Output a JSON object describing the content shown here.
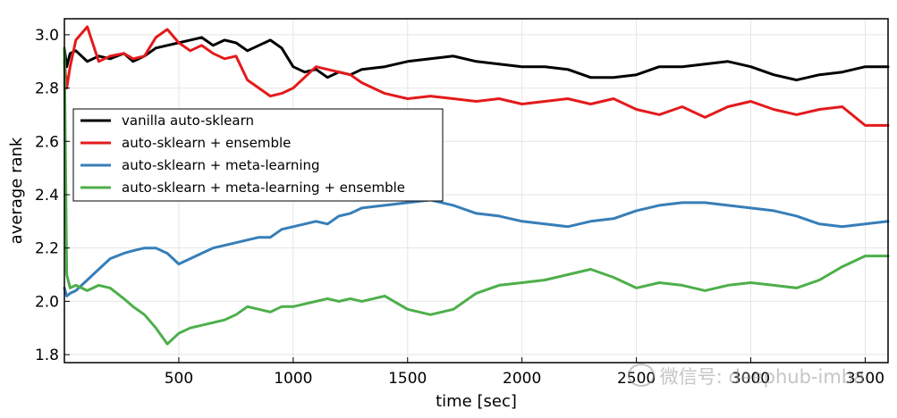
{
  "chart_data": {
    "type": "line",
    "title": "",
    "xlabel": "time [sec]",
    "ylabel": "average rank",
    "xlim": [
      0,
      3600
    ],
    "ylim": [
      1.77,
      3.06
    ],
    "xticks": [
      500,
      1000,
      1500,
      2000,
      2500,
      3000,
      3500
    ],
    "yticks": [
      1.8,
      2.0,
      2.2,
      2.4,
      2.6,
      2.8,
      3.0
    ],
    "xtick_labels": [
      "500",
      "1000",
      "1500",
      "2000",
      "2500",
      "3000",
      "3500"
    ],
    "ytick_labels": [
      "1.8",
      "2.0",
      "2.2",
      "2.4",
      "2.6",
      "2.8",
      "3.0"
    ],
    "grid": true,
    "legend_position": "center-left",
    "series": [
      {
        "name": "vanilla auto-sklearn",
        "color": "#000000",
        "x": [
          0,
          10,
          25,
          50,
          100,
          150,
          200,
          260,
          300,
          350,
          400,
          450,
          500,
          550,
          600,
          650,
          700,
          750,
          800,
          850,
          900,
          950,
          1000,
          1050,
          1100,
          1150,
          1200,
          1250,
          1300,
          1400,
          1500,
          1600,
          1700,
          1800,
          1900,
          2000,
          2100,
          2200,
          2300,
          2400,
          2500,
          2600,
          2700,
          2800,
          2900,
          3000,
          3100,
          3200,
          3300,
          3400,
          3500,
          3600
        ],
        "y": [
          2.95,
          2.88,
          2.93,
          2.94,
          2.9,
          2.92,
          2.91,
          2.93,
          2.9,
          2.92,
          2.95,
          2.96,
          2.97,
          2.98,
          2.99,
          2.96,
          2.98,
          2.97,
          2.94,
          2.96,
          2.98,
          2.95,
          2.88,
          2.86,
          2.87,
          2.84,
          2.86,
          2.85,
          2.87,
          2.88,
          2.9,
          2.91,
          2.92,
          2.9,
          2.89,
          2.88,
          2.88,
          2.87,
          2.84,
          2.84,
          2.85,
          2.88,
          2.88,
          2.89,
          2.9,
          2.88,
          2.85,
          2.83,
          2.85,
          2.86,
          2.88,
          2.88
        ]
      },
      {
        "name": "auto-sklearn + ensemble",
        "color": "#e41a1c",
        "x": [
          0,
          10,
          25,
          50,
          100,
          150,
          200,
          260,
          300,
          350,
          400,
          450,
          500,
          550,
          600,
          650,
          700,
          750,
          800,
          850,
          900,
          950,
          1000,
          1050,
          1100,
          1150,
          1200,
          1250,
          1300,
          1400,
          1500,
          1600,
          1700,
          1800,
          1900,
          2000,
          2100,
          2200,
          2300,
          2400,
          2500,
          2600,
          2700,
          2800,
          2900,
          3000,
          3100,
          3200,
          3300,
          3400,
          3500,
          3600
        ],
        "y": [
          2.9,
          2.8,
          2.88,
          2.98,
          3.03,
          2.9,
          2.92,
          2.93,
          2.91,
          2.92,
          2.99,
          3.02,
          2.97,
          2.94,
          2.96,
          2.93,
          2.91,
          2.92,
          2.83,
          2.8,
          2.77,
          2.78,
          2.8,
          2.84,
          2.88,
          2.87,
          2.86,
          2.85,
          2.82,
          2.78,
          2.76,
          2.77,
          2.76,
          2.75,
          2.76,
          2.74,
          2.75,
          2.76,
          2.74,
          2.76,
          2.72,
          2.7,
          2.73,
          2.69,
          2.73,
          2.75,
          2.72,
          2.7,
          2.72,
          2.73,
          2.66,
          2.66
        ]
      },
      {
        "name": "auto-sklearn + meta-learning",
        "color": "#377eb8",
        "x": [
          0,
          10,
          25,
          50,
          100,
          150,
          200,
          260,
          300,
          350,
          400,
          450,
          500,
          550,
          600,
          650,
          700,
          750,
          800,
          850,
          900,
          950,
          1000,
          1050,
          1100,
          1150,
          1200,
          1250,
          1300,
          1400,
          1500,
          1600,
          1700,
          1800,
          1900,
          2000,
          2100,
          2200,
          2300,
          2400,
          2500,
          2600,
          2700,
          2800,
          2900,
          3000,
          3100,
          3200,
          3300,
          3400,
          3500,
          3600
        ],
        "y": [
          2.05,
          2.02,
          2.03,
          2.04,
          2.08,
          2.12,
          2.16,
          2.18,
          2.19,
          2.2,
          2.2,
          2.18,
          2.14,
          2.16,
          2.18,
          2.2,
          2.21,
          2.22,
          2.23,
          2.24,
          2.24,
          2.27,
          2.28,
          2.29,
          2.3,
          2.29,
          2.32,
          2.33,
          2.35,
          2.36,
          2.37,
          2.38,
          2.36,
          2.33,
          2.32,
          2.3,
          2.29,
          2.28,
          2.3,
          2.31,
          2.34,
          2.36,
          2.37,
          2.37,
          2.36,
          2.35,
          2.34,
          2.32,
          2.29,
          2.28,
          2.29,
          2.3
        ]
      },
      {
        "name": "auto-sklearn + meta-learning + ensemble",
        "color": "#4daf4a",
        "x": [
          0,
          10,
          25,
          50,
          100,
          150,
          200,
          260,
          300,
          350,
          400,
          450,
          500,
          550,
          600,
          650,
          700,
          750,
          800,
          850,
          900,
          950,
          1000,
          1050,
          1100,
          1150,
          1200,
          1250,
          1300,
          1400,
          1500,
          1600,
          1700,
          1800,
          1900,
          2000,
          2100,
          2200,
          2300,
          2400,
          2500,
          2600,
          2700,
          2800,
          2900,
          3000,
          3100,
          3200,
          3300,
          3400,
          3500,
          3600
        ],
        "y": [
          2.95,
          2.1,
          2.05,
          2.06,
          2.04,
          2.06,
          2.05,
          2.01,
          1.98,
          1.95,
          1.9,
          1.84,
          1.88,
          1.9,
          1.91,
          1.92,
          1.93,
          1.95,
          1.98,
          1.97,
          1.96,
          1.98,
          1.98,
          1.99,
          2.0,
          2.01,
          2.0,
          2.01,
          2.0,
          2.02,
          1.97,
          1.95,
          1.97,
          2.03,
          2.06,
          2.07,
          2.08,
          2.1,
          2.12,
          2.09,
          2.05,
          2.07,
          2.06,
          2.04,
          2.06,
          2.07,
          2.06,
          2.05,
          2.08,
          2.13,
          2.17,
          2.17
        ]
      }
    ]
  },
  "watermark": {
    "text": "微信号: deephub-imba",
    "icon": "wechat-icon"
  }
}
